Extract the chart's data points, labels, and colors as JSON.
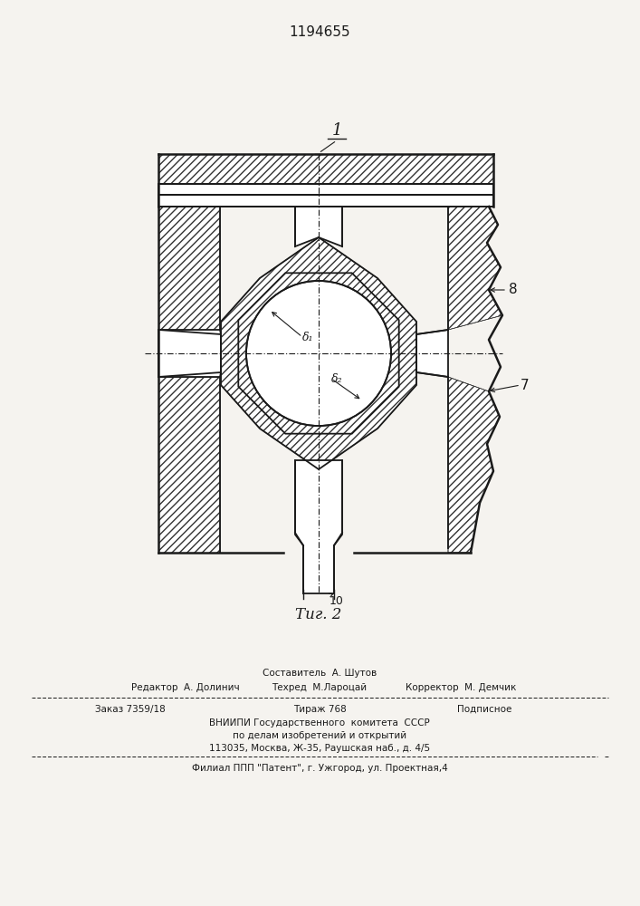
{
  "patent_number": "1194655",
  "fig_label": "Τиг. 2",
  "part1_label": "1",
  "part7_label": "7",
  "part8_label": "8",
  "part10_label": "10",
  "delta1_label": "δ₁",
  "delta2_label": "δ₂",
  "bg_color": "#f5f3ef",
  "line_color": "#1a1a1a",
  "hatch_color": "#333333",
  "footer_line1": "Составитель  А. Шутов",
  "footer_line2_left": "Редактор  А. Долинич",
  "footer_line2_mid": "Техред  М.Лароцай",
  "footer_line2_right": "Корректор  М. Демчик",
  "footer_line3_left": "Заказ 7359/18",
  "footer_line3_mid": "Тираж 768",
  "footer_line3_right": "Подписное",
  "footer_line4": "ВНИИПИ Государственного  комитета  СССР",
  "footer_line5": "по делам изобретений и открытий",
  "footer_line6": "113035, Москва, Ж-35, Раушская наб., д. 4/5",
  "footer_line7": "Филиал ППП \"Патент\", г. Ужгород, ул. Проектная,4"
}
